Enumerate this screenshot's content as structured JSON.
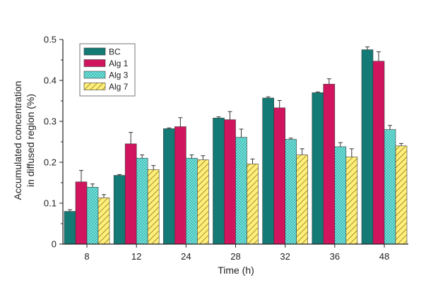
{
  "chart_data": {
    "type": "bar",
    "title": "",
    "xlabel": "Time (h)",
    "ylabel_lines": [
      "Accumulated concentration",
      "in diffused region (%)"
    ],
    "categories": [
      "8",
      "12",
      "24",
      "28",
      "32",
      "36",
      "48"
    ],
    "ylim": [
      0,
      0.5
    ],
    "yticks": [
      0,
      0.1,
      0.2,
      0.3,
      0.4,
      0.5
    ],
    "ytick_labels": [
      "0",
      "0.1",
      "0.2",
      "0.3",
      "0.4",
      "0.5"
    ],
    "grid": false,
    "legend_position": "top-left",
    "series": [
      {
        "name": "BC",
        "color": "#137a76",
        "pattern": "solid",
        "values": [
          0.08,
          0.168,
          0.282,
          0.308,
          0.357,
          0.37,
          0.475
        ],
        "errors": [
          0.004,
          0.002,
          0.002,
          0.003,
          0.003,
          0.002,
          0.007
        ]
      },
      {
        "name": "Alg 1",
        "color": "#d0145e",
        "pattern": "solid",
        "values": [
          0.152,
          0.245,
          0.287,
          0.304,
          0.333,
          0.391,
          0.447
        ],
        "errors": [
          0.028,
          0.028,
          0.022,
          0.02,
          0.018,
          0.013,
          0.023
        ]
      },
      {
        "name": "Alg 3",
        "color": "#3fbfb8",
        "pattern": "crosshatch",
        "values": [
          0.139,
          0.21,
          0.21,
          0.261,
          0.256,
          0.238,
          0.28
        ],
        "errors": [
          0.008,
          0.008,
          0.008,
          0.02,
          0.003,
          0.01,
          0.01
        ]
      },
      {
        "name": "Alg 7",
        "color": "#ffee77",
        "pattern": "diagonal",
        "values": [
          0.113,
          0.182,
          0.206,
          0.196,
          0.218,
          0.213,
          0.24
        ],
        "errors": [
          0.008,
          0.01,
          0.01,
          0.012,
          0.015,
          0.02,
          0.006
        ]
      }
    ]
  }
}
